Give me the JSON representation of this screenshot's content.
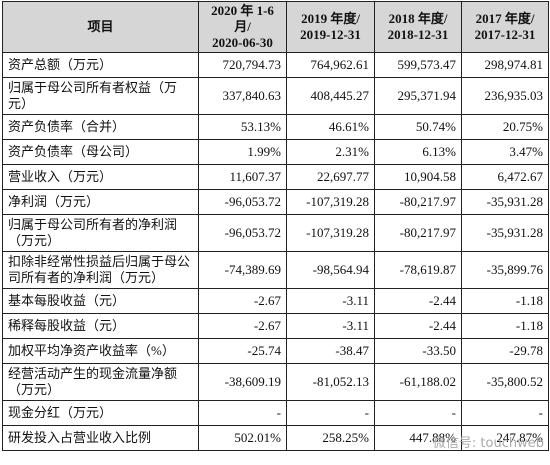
{
  "table": {
    "header": [
      [
        "项目"
      ],
      [
        "2020 年 1-6 月/",
        "2020-06-30"
      ],
      [
        "2019 年度/",
        "2019-12-31"
      ],
      [
        "2018 年度/",
        "2018-12-31"
      ],
      [
        "2017 年度/",
        "2017-12-31"
      ]
    ],
    "rows": [
      [
        "资产总额（万元）",
        "720,794.73",
        "764,962.61",
        "599,573.47",
        "298,974.81"
      ],
      [
        "归属于母公司所有者权益（万元）",
        "337,840.63",
        "408,445.27",
        "295,371.94",
        "236,935.03"
      ],
      [
        "资产负债率（合并）",
        "53.13%",
        "46.61%",
        "50.74%",
        "20.75%"
      ],
      [
        "资产负债率（母公司）",
        "1.99%",
        "2.31%",
        "6.13%",
        "3.47%"
      ],
      [
        "营业收入（万元）",
        "11,607.37",
        "22,697.77",
        "10,904.58",
        "6,472.67"
      ],
      [
        "净利润（万元）",
        "-96,053.72",
        "-107,319.28",
        "-80,217.97",
        "-35,931.28"
      ],
      [
        "归属于母公司所有者的净利润（万元）",
        "-96,053.72",
        "-107,319.28",
        "-80,217.97",
        "-35,931.28"
      ],
      [
        "扣除非经常性损益后归属于母公司所有者的净利润（万元）",
        "-74,389.69",
        "-98,564.94",
        "-78,619.87",
        "-35,899.76"
      ],
      [
        "基本每股收益（元）",
        "-2.67",
        "-3.11",
        "-2.44",
        "-1.18"
      ],
      [
        "稀释每股收益（元）",
        "-2.67",
        "-3.11",
        "-2.44",
        "-1.18"
      ],
      [
        "加权平均净资产收益率（%）",
        "-25.74",
        "-38.47",
        "-33.50",
        "-29.78"
      ],
      [
        "经营活动产生的现金流量净额（万元）",
        "-38,609.19",
        "-81,052.13",
        "-61,188.02",
        "-35,800.52"
      ],
      [
        "现金分红（万元）",
        "-",
        "-",
        "-",
        "-"
      ],
      [
        "研发投入占营业收入比例",
        "502.01%",
        "258.25%",
        "447.88%",
        "247.87%"
      ]
    ]
  },
  "watermark": "微信号: touchweb"
}
